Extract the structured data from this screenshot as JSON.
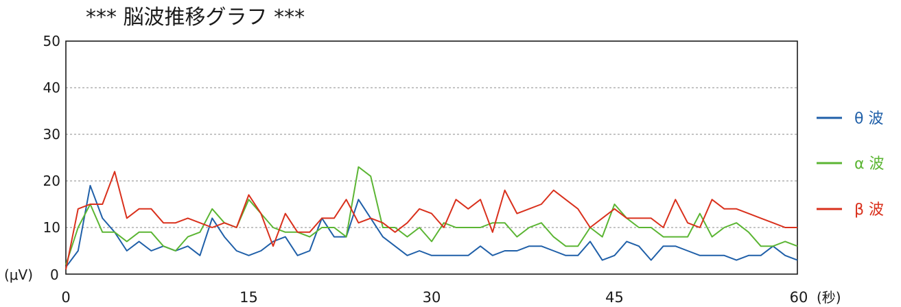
{
  "chart_data": {
    "type": "line",
    "title": "*** 脳波推移グラフ ***",
    "ylabel": "(μV)",
    "xlabel": "(秒)",
    "xlim": [
      0,
      60
    ],
    "ylim": [
      0,
      50
    ],
    "x_ticks": [
      0,
      15,
      30,
      45,
      60
    ],
    "y_ticks": [
      0,
      10,
      20,
      30,
      40,
      50
    ],
    "grid": "horizontal-dotted",
    "legend_position": "right",
    "x": [
      0,
      1,
      2,
      3,
      4,
      5,
      6,
      7,
      8,
      9,
      10,
      11,
      12,
      13,
      14,
      15,
      16,
      17,
      18,
      19,
      20,
      21,
      22,
      23,
      24,
      25,
      26,
      27,
      28,
      29,
      30,
      31,
      32,
      33,
      34,
      35,
      36,
      37,
      38,
      39,
      40,
      41,
      42,
      43,
      44,
      45,
      46,
      47,
      48,
      49,
      50,
      51,
      52,
      53,
      54,
      55,
      56,
      57,
      58,
      59,
      60
    ],
    "series": [
      {
        "name": "θ 波",
        "color": "#1f5fa8",
        "values": [
          1.5,
          5,
          19,
          12,
          9,
          5,
          7,
          5,
          6,
          5,
          6,
          4,
          12,
          8,
          5,
          4,
          5,
          7,
          8,
          4,
          5,
          12,
          8,
          8,
          16,
          12,
          8,
          6,
          4,
          5,
          4,
          4,
          4,
          4,
          6,
          4,
          5,
          5,
          6,
          6,
          5,
          4,
          4,
          7,
          3,
          4,
          7,
          6,
          3,
          6,
          6,
          5,
          4,
          4,
          4,
          3,
          4,
          4,
          6,
          4,
          3
        ]
      },
      {
        "name": "α 波",
        "color": "#5bb533",
        "values": [
          2,
          10,
          15,
          9,
          9,
          7,
          9,
          9,
          6,
          5,
          8,
          9,
          14,
          11,
          10,
          16,
          13,
          10,
          9,
          9,
          8,
          10,
          10,
          8,
          23,
          21,
          10,
          10,
          8,
          10,
          7,
          11,
          10,
          10,
          10,
          11,
          11,
          8,
          10,
          11,
          8,
          6,
          6,
          10,
          8,
          15,
          12,
          10,
          10,
          8,
          8,
          8,
          13,
          8,
          10,
          11,
          9,
          6,
          6,
          7,
          6
        ]
      },
      {
        "name": "β 波",
        "color": "#d9301c",
        "values": [
          1,
          14,
          15,
          15,
          22,
          12,
          14,
          14,
          11,
          11,
          12,
          11,
          10,
          11,
          10,
          17,
          13,
          6,
          13,
          9,
          9,
          12,
          12,
          16,
          11,
          12,
          11,
          9,
          11,
          14,
          13,
          10,
          16,
          14,
          16,
          9,
          18,
          13,
          14,
          15,
          18,
          16,
          14,
          10,
          12,
          14,
          12,
          12,
          12,
          10,
          16,
          11,
          10,
          16,
          14,
          14,
          13,
          12,
          11,
          10,
          10
        ]
      }
    ]
  }
}
